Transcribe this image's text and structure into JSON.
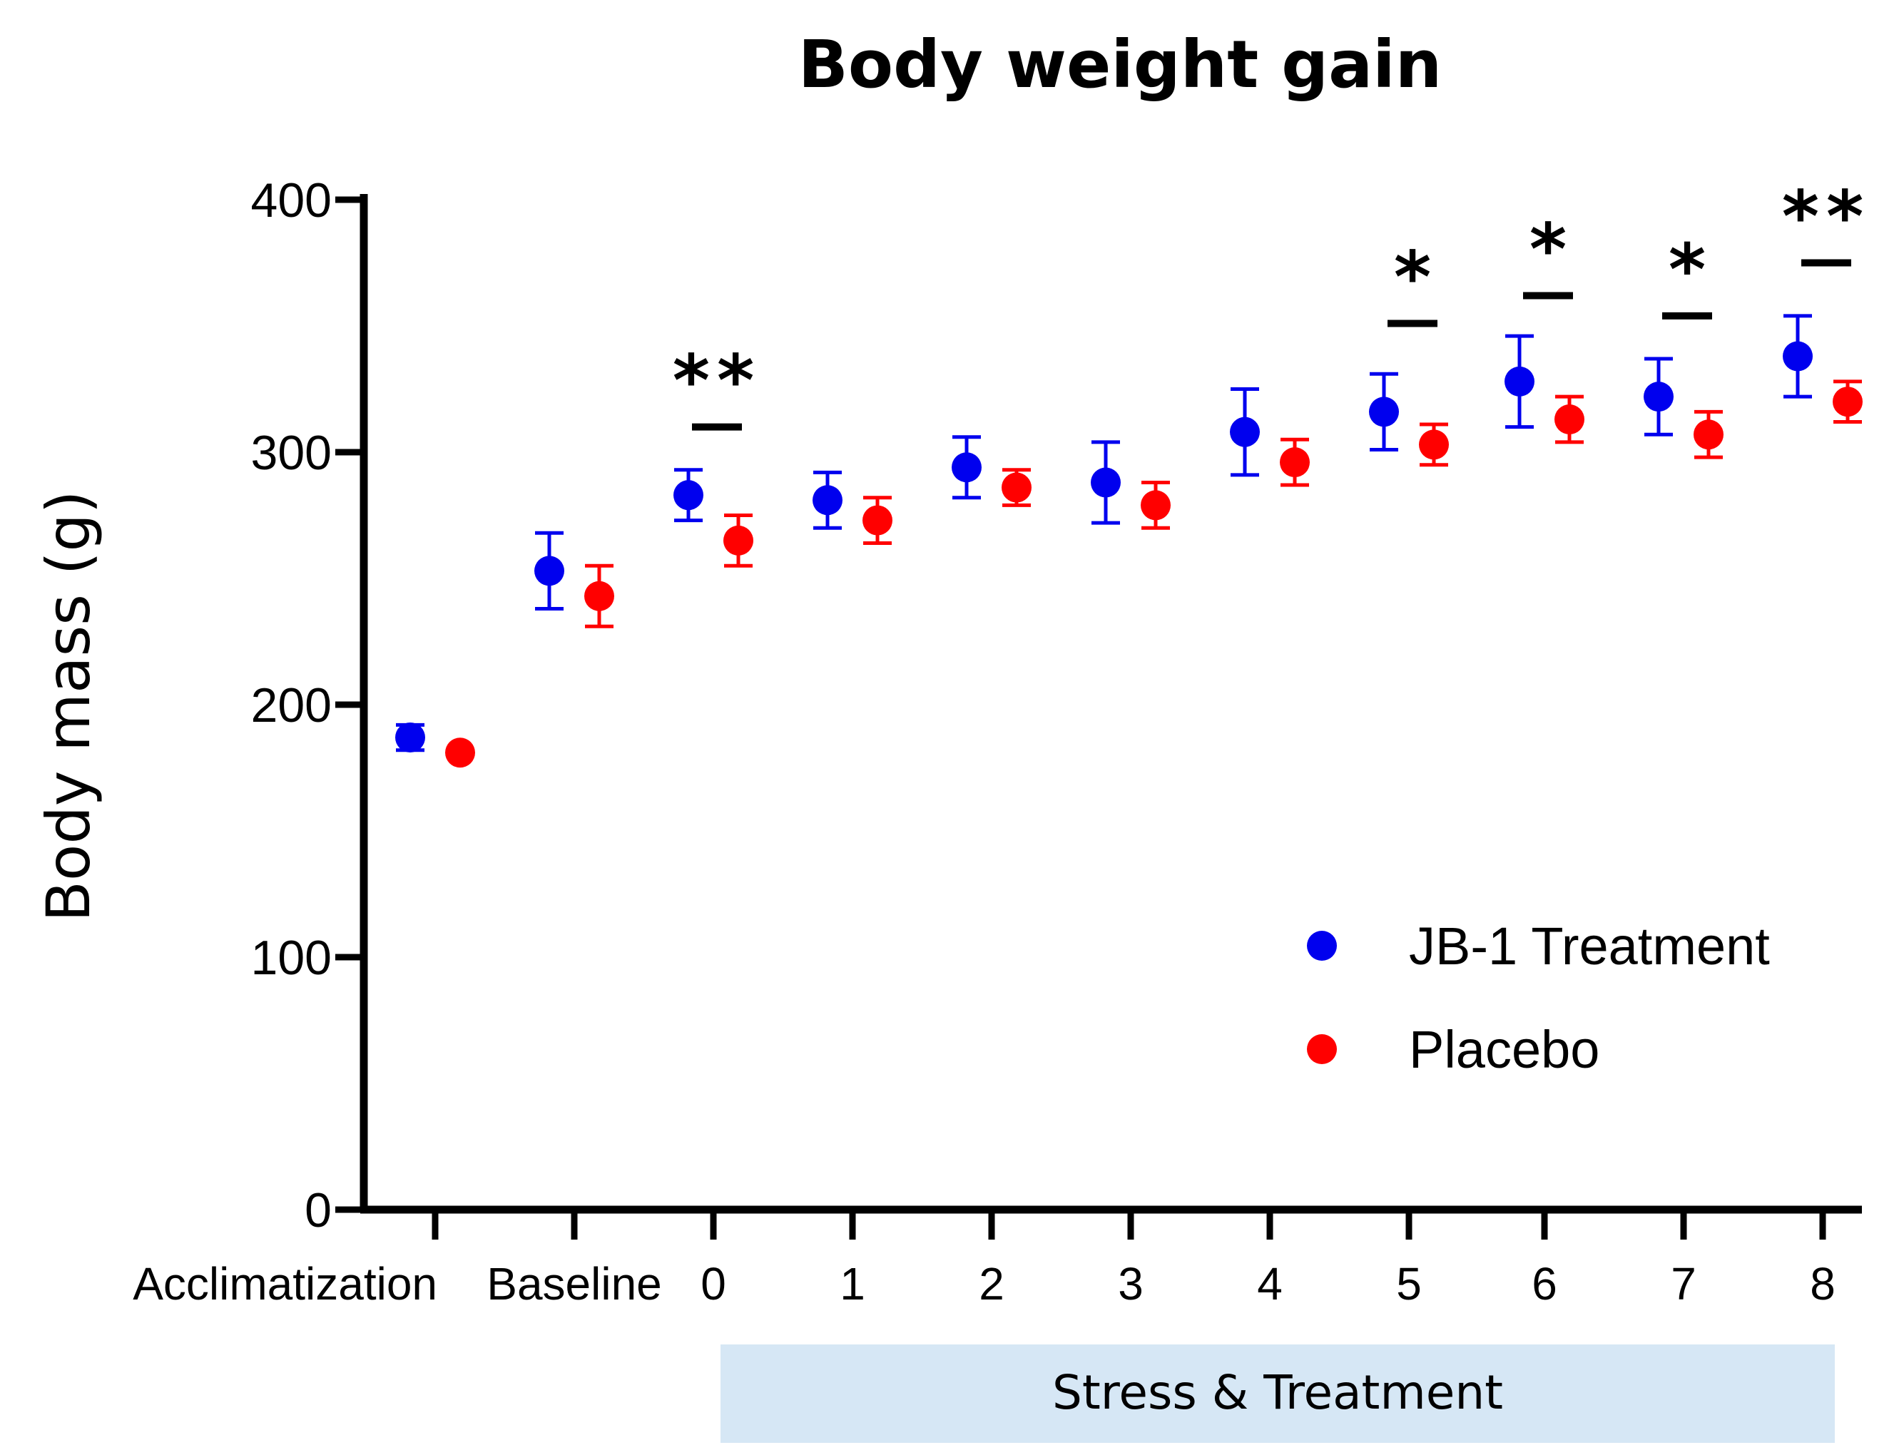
{
  "chart_data": {
    "type": "scatter",
    "title": "Body weight gain",
    "xlabel": "",
    "ylabel": "Body mass (g)",
    "ylim": [
      0,
      400
    ],
    "yticks": [
      "0",
      "100",
      "200",
      "300",
      "400"
    ],
    "categories": [
      "Acclimatization",
      "Baseline",
      "0",
      "1",
      "2",
      "3",
      "4",
      "5",
      "6",
      "7",
      "8"
    ],
    "series": [
      {
        "name": "JB-1 Treatment",
        "color": "#0000ee",
        "values": [
          187,
          253,
          283,
          281,
          294,
          288,
          308,
          316,
          328,
          322,
          338
        ],
        "err": [
          5,
          15,
          10,
          11,
          12,
          16,
          17,
          15,
          18,
          15,
          16
        ]
      },
      {
        "name": "Placebo",
        "color": "#ff0000",
        "values": [
          181,
          243,
          265,
          273,
          286,
          279,
          296,
          303,
          313,
          307,
          320
        ],
        "err": [
          0,
          12,
          10,
          9,
          7,
          9,
          9,
          8,
          9,
          9,
          8
        ]
      }
    ],
    "significance": [
      {
        "category": "0",
        "label": "**",
        "bar_value": 310
      },
      {
        "category": "5",
        "label": "*",
        "bar_value": 351
      },
      {
        "category": "6",
        "label": "*",
        "bar_value": 362
      },
      {
        "category": "7",
        "label": "*",
        "bar_value": 354
      },
      {
        "category": "8",
        "label": "**",
        "bar_value": 375
      }
    ],
    "band": {
      "label": "Stress & Treatment",
      "from_category": "0",
      "to_category": "8",
      "color": "#d6e7f5"
    },
    "legend_position": "bottom-right",
    "grid": false
  }
}
